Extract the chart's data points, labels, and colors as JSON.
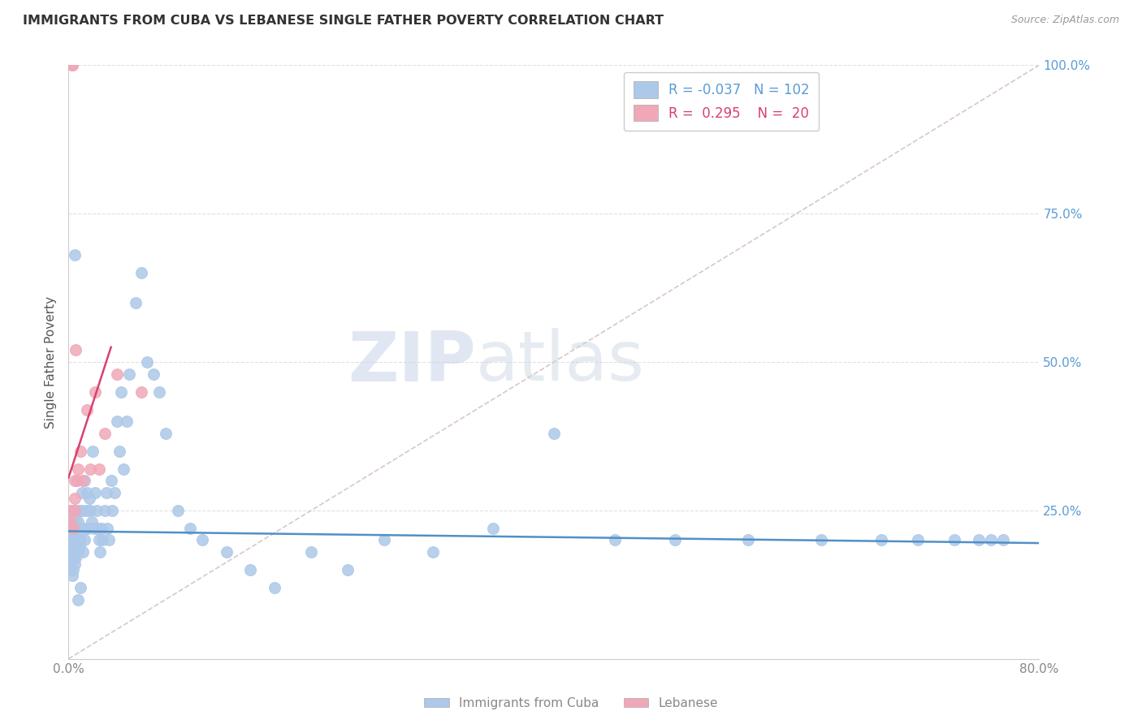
{
  "title": "IMMIGRANTS FROM CUBA VS LEBANESE SINGLE FATHER POVERTY CORRELATION CHART",
  "source": "Source: ZipAtlas.com",
  "ylabel": "Single Father Poverty",
  "legend_labels": [
    "Immigrants from Cuba",
    "Lebanese"
  ],
  "legend_r_cuba": "-0.037",
  "legend_n_cuba": "102",
  "legend_r_leb": "0.295",
  "legend_n_leb": "20",
  "blue_color": "#adc8e8",
  "pink_color": "#f0a8b8",
  "blue_line_color": "#5090c8",
  "pink_line_color": "#d84070",
  "diagonal_color": "#d8c8c8",
  "background_color": "#ffffff",
  "grid_color": "#e0e0e0",
  "xlim": [
    0.0,
    0.8
  ],
  "ylim": [
    0.0,
    1.0
  ],
  "cuba_x": [
    0.001,
    0.001,
    0.001,
    0.001,
    0.002,
    0.002,
    0.002,
    0.002,
    0.002,
    0.003,
    0.003,
    0.003,
    0.003,
    0.003,
    0.004,
    0.004,
    0.004,
    0.004,
    0.005,
    0.005,
    0.005,
    0.005,
    0.006,
    0.006,
    0.006,
    0.006,
    0.007,
    0.007,
    0.007,
    0.008,
    0.008,
    0.008,
    0.009,
    0.009,
    0.01,
    0.01,
    0.011,
    0.011,
    0.012,
    0.012,
    0.013,
    0.013,
    0.014,
    0.015,
    0.015,
    0.016,
    0.017,
    0.018,
    0.019,
    0.02,
    0.021,
    0.022,
    0.023,
    0.024,
    0.025,
    0.026,
    0.027,
    0.028,
    0.03,
    0.031,
    0.032,
    0.033,
    0.035,
    0.036,
    0.038,
    0.04,
    0.042,
    0.043,
    0.045,
    0.048,
    0.05,
    0.055,
    0.06,
    0.065,
    0.07,
    0.075,
    0.08,
    0.09,
    0.1,
    0.11,
    0.13,
    0.15,
    0.17,
    0.2,
    0.23,
    0.26,
    0.3,
    0.35,
    0.4,
    0.45,
    0.5,
    0.56,
    0.62,
    0.67,
    0.7,
    0.73,
    0.75,
    0.76,
    0.77,
    0.005,
    0.008,
    0.01
  ],
  "cuba_y": [
    0.2,
    0.18,
    0.22,
    0.15,
    0.17,
    0.19,
    0.21,
    0.16,
    0.23,
    0.18,
    0.2,
    0.22,
    0.14,
    0.25,
    0.17,
    0.19,
    0.21,
    0.15,
    0.2,
    0.22,
    0.18,
    0.16,
    0.19,
    0.21,
    0.17,
    0.23,
    0.2,
    0.22,
    0.25,
    0.18,
    0.2,
    0.23,
    0.19,
    0.22,
    0.2,
    0.25,
    0.22,
    0.28,
    0.18,
    0.25,
    0.2,
    0.3,
    0.22,
    0.25,
    0.28,
    0.22,
    0.27,
    0.25,
    0.23,
    0.35,
    0.22,
    0.28,
    0.25,
    0.22,
    0.2,
    0.18,
    0.22,
    0.2,
    0.25,
    0.28,
    0.22,
    0.2,
    0.3,
    0.25,
    0.28,
    0.4,
    0.35,
    0.45,
    0.32,
    0.4,
    0.48,
    0.6,
    0.65,
    0.5,
    0.48,
    0.45,
    0.38,
    0.25,
    0.22,
    0.2,
    0.18,
    0.15,
    0.12,
    0.18,
    0.15,
    0.2,
    0.18,
    0.22,
    0.38,
    0.2,
    0.2,
    0.2,
    0.2,
    0.2,
    0.2,
    0.2,
    0.2,
    0.2,
    0.2,
    0.68,
    0.1,
    0.12
  ],
  "leb_x": [
    0.001,
    0.002,
    0.003,
    0.003,
    0.004,
    0.005,
    0.005,
    0.005,
    0.006,
    0.007,
    0.008,
    0.01,
    0.012,
    0.015,
    0.018,
    0.022,
    0.025,
    0.03,
    0.04,
    0.06
  ],
  "leb_y": [
    0.25,
    0.23,
    1.0,
    1.0,
    0.22,
    0.25,
    0.27,
    0.3,
    0.52,
    0.3,
    0.32,
    0.35,
    0.3,
    0.42,
    0.32,
    0.45,
    0.32,
    0.38,
    0.48,
    0.45
  ],
  "watermark_zip": "ZIP",
  "watermark_atlas": "atlas"
}
